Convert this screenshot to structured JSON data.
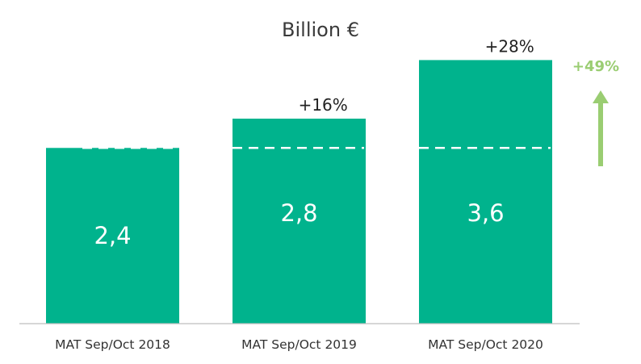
{
  "colors": {
    "bar": "#00b38d",
    "arrow": "#9acd72",
    "axis": "#bfbfbf",
    "baseline_marker": "#ffffff"
  },
  "chart_data": {
    "type": "bar",
    "title": "Billion €",
    "categories": [
      "MAT Sep/Oct 2018",
      "MAT Sep/Oct 2019",
      "MAT Sep/Oct 2020"
    ],
    "values": [
      2.4,
      2.8,
      3.6
    ],
    "value_labels": [
      "2,4",
      "2,8",
      "3,6"
    ],
    "growth_labels": [
      "",
      "+16%",
      "+28%"
    ],
    "total_growth_label": "+49%",
    "reference_line": "dashed line at the 2018 level inside each bar",
    "ylim": [
      0,
      4.2
    ],
    "grid": false,
    "legend": "none"
  }
}
